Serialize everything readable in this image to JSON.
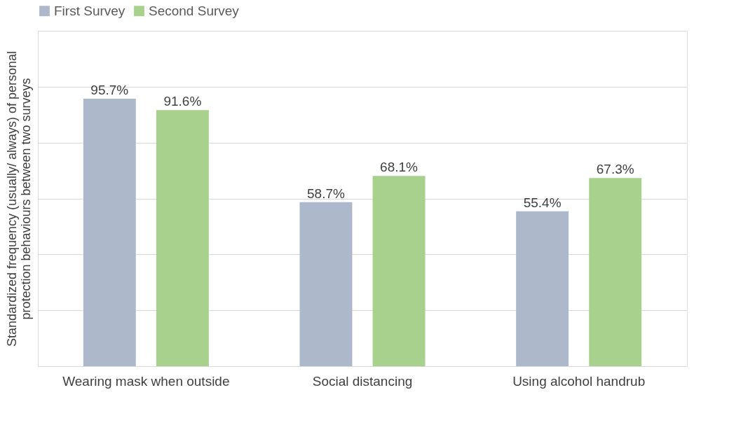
{
  "chart_data": {
    "type": "bar",
    "ylabel": "Standardized frequency (usually/ always) of personal\nprotection behaviours between two surveys",
    "categories": [
      "Wearing mask when outside",
      "Social distancing",
      "Using alcohol handrub"
    ],
    "series": [
      {
        "name": "First Survey",
        "color": "#adb9ca",
        "values": [
          95.7,
          58.7,
          55.4
        ],
        "value_labels": [
          "95.7%",
          "58.7%",
          "55.4%"
        ]
      },
      {
        "name": "Second Survey",
        "color": "#a9d18e",
        "values": [
          91.6,
          68.1,
          67.3
        ],
        "value_labels": [
          "91.6%",
          "68.1%",
          "67.3%"
        ]
      }
    ],
    "ylim": [
      0,
      120
    ],
    "yticks": [
      {
        "value": 0,
        "label": null
      },
      {
        "value": 20,
        "label": null
      },
      {
        "value": 40,
        "label": null
      },
      {
        "value": 60,
        "label": null
      },
      {
        "value": 80,
        "label": null
      },
      {
        "value": 100,
        "label": null
      },
      {
        "value": 120,
        "label": null
      }
    ],
    "tick_labels": "x",
    "grid": "y",
    "legend": "top"
  }
}
